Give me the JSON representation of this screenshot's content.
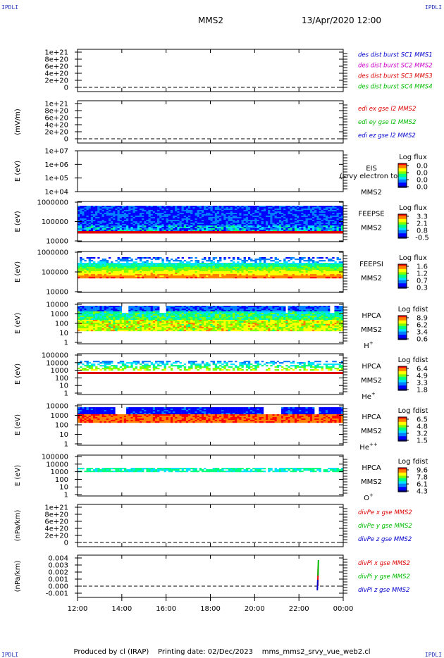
{
  "header": {
    "corner_tl": "IPDLI",
    "corner_tr": "IPDLI",
    "corner_bl": "IPDLI",
    "corner_br": "IPDLI",
    "spacecraft": "MMS2",
    "datetime": "13/Apr/2020 12:00"
  },
  "footer": {
    "produced": "Produced by cl (IRAP)",
    "printing": "Printing date: 02/Dec/2023",
    "file": "mms_mms2_srvy_vue_web2.cl"
  },
  "colors": {
    "red": "#dd0000",
    "green": "#00bb00",
    "blue": "#0000cc",
    "magenta": "#cc00cc",
    "spectrogram_palette": [
      "#000080",
      "#0000ff",
      "#0080ff",
      "#00e0ff",
      "#00ff80",
      "#80ff00",
      "#ffff00",
      "#ff8000",
      "#ff0000"
    ]
  },
  "time_axis": {
    "tick_labels": [
      "12:00",
      "14:00",
      "16:00",
      "18:00",
      "20:00",
      "22:00",
      "00:00"
    ],
    "hours": [
      12,
      14,
      16,
      18,
      20,
      22,
      24
    ]
  },
  "chart_data": [
    {
      "type": "line",
      "id": "des-dist",
      "ylabel": "",
      "ylim": [
        0,
        1e+21
      ],
      "tick_labels": [
        "1e+21",
        "8e+20",
        "6e+20",
        "4e+20",
        "2e+20",
        "0"
      ],
      "series": [
        {
          "name": "des dist burst SC1 MMS1",
          "color": "#0000cc",
          "values": []
        },
        {
          "name": "des dist burst SC2 MMS2",
          "color": "#cc00cc",
          "values": []
        },
        {
          "name": "des dist burst SC3 MMS3",
          "color": "#dd0000",
          "values": []
        },
        {
          "name": "des dist burst SC4 MMS4",
          "color": "#00bb00",
          "values": []
        }
      ]
    },
    {
      "type": "line",
      "id": "edi-e",
      "ylabel": "(mV/m)",
      "ylim": [
        0,
        1e+21
      ],
      "tick_labels": [
        "1e+21",
        "8e+20",
        "6e+20",
        "4e+20",
        "2e+20",
        "0"
      ],
      "series": [
        {
          "name": "edi ex gse l2 MMS2",
          "color": "#dd0000",
          "values": []
        },
        {
          "name": "edi ey gse l2 MMS2",
          "color": "#00bb00",
          "values": []
        },
        {
          "name": "edi ez gse l2 MMS2",
          "color": "#0000cc",
          "values": []
        }
      ]
    },
    {
      "type": "heatmap",
      "id": "eis",
      "ylabel": "E (eV)",
      "ylim": [
        10000,
        10000000
      ],
      "log_scale": true,
      "tick_labels": [
        "1e+07",
        "1e+06",
        "1e+05",
        "1e+04"
      ],
      "instrument": "EIS",
      "subtitle": "(srvy electron to",
      "sc": "MMS2",
      "colorbar": {
        "title": "Log flux",
        "ticks": [
          "0.0",
          "0.0",
          "0.0",
          "0.0"
        ]
      },
      "values": []
    },
    {
      "type": "heatmap",
      "id": "feeps-e",
      "ylabel": "E (eV)",
      "ylim": [
        10000,
        1000000
      ],
      "log_scale": true,
      "tick_labels": [
        "1000000",
        "100000",
        "10000"
      ],
      "instrument": "FEEPSE",
      "sc": "MMS2",
      "colorbar": {
        "title": "Log flux",
        "ticks": [
          "3.3",
          "2.1",
          "0.8",
          "-0.5"
        ]
      }
    },
    {
      "type": "heatmap",
      "id": "feeps-i",
      "ylabel": "E (eV)",
      "ylim": [
        10000,
        1000000
      ],
      "log_scale": true,
      "tick_labels": [
        "1000000",
        "100000",
        "10000"
      ],
      "instrument": "FEEPSI",
      "sc": "MMS2",
      "colorbar": {
        "title": "Log flux",
        "ticks": [
          "1.6",
          "1.2",
          "0.7",
          "0.3"
        ]
      }
    },
    {
      "type": "heatmap",
      "id": "hpca-h",
      "ylabel": "E (eV)",
      "ylim": [
        1,
        10000
      ],
      "log_scale": true,
      "tick_labels": [
        "10000",
        "1000",
        "100",
        "10",
        "1"
      ],
      "instrument": "HPCA",
      "sc": "MMS2",
      "species": "H",
      "species_sup": "+",
      "colorbar": {
        "title": "Log fdist",
        "ticks": [
          "8.9",
          "6.2",
          "3.4",
          "0.6"
        ]
      }
    },
    {
      "type": "heatmap",
      "id": "hpca-he",
      "ylabel": "E (eV)",
      "ylim": [
        1,
        100000
      ],
      "log_scale": true,
      "tick_labels": [
        "100000",
        "10000",
        "1000",
        "100",
        "10",
        "1"
      ],
      "instrument": "HPCA",
      "sc": "MMS2",
      "species": "He",
      "species_sup": "+",
      "colorbar": {
        "title": "Log fdist",
        "ticks": [
          "6.4",
          "4.9",
          "3.3",
          "1.8"
        ]
      }
    },
    {
      "type": "heatmap",
      "id": "hpca-he2",
      "ylabel": "E (eV)",
      "ylim": [
        1,
        10000
      ],
      "log_scale": true,
      "tick_labels": [
        "10000",
        "1000",
        "100",
        "10",
        "1"
      ],
      "instrument": "HPCA",
      "sc": "MMS2",
      "species": "He",
      "species_sup": "++",
      "colorbar": {
        "title": "Log fdist",
        "ticks": [
          "6.5",
          "4.8",
          "3.2",
          "1.5"
        ]
      }
    },
    {
      "type": "heatmap",
      "id": "hpca-o",
      "ylabel": "E (eV)",
      "ylim": [
        1,
        100000
      ],
      "log_scale": true,
      "tick_labels": [
        "100000",
        "10000",
        "1000",
        "100",
        "10",
        "1"
      ],
      "instrument": "HPCA",
      "sc": "MMS2",
      "species": "O",
      "species_sup": "+",
      "colorbar": {
        "title": "Log fdist",
        "ticks": [
          "9.6",
          "7.8",
          "6.1",
          "4.3"
        ]
      }
    },
    {
      "type": "line",
      "id": "divpe",
      "ylabel": "(nPa/km)",
      "ylim": [
        0,
        1e+21
      ],
      "tick_labels": [
        "1e+21",
        "8e+20",
        "6e+20",
        "4e+20",
        "2e+20",
        "0"
      ],
      "series": [
        {
          "name": "divPe x gse MMS2",
          "color": "#dd0000",
          "values": []
        },
        {
          "name": "divPe y gse MMS2",
          "color": "#00bb00",
          "values": []
        },
        {
          "name": "divPe z gse MMS2",
          "color": "#0000cc",
          "values": []
        }
      ]
    },
    {
      "type": "line",
      "id": "divpi",
      "ylabel": "(nPa/km)",
      "ylim": [
        -0.001,
        0.004
      ],
      "tick_labels": [
        "0.004",
        "0.003",
        "0.002",
        "0.001",
        "0.000",
        "-0.001"
      ],
      "series": [
        {
          "name": "divPi x gse MMS2",
          "color": "#dd0000",
          "x": [
            22.85,
            22.87
          ],
          "values": [
            0.0,
            0.0029
          ]
        },
        {
          "name": "divPi y gse MMS2",
          "color": "#00bb00",
          "x": [
            22.86,
            22.88
          ],
          "values": [
            0.0015,
            0.0037
          ]
        },
        {
          "name": "divPi z gse MMS2",
          "color": "#0000cc",
          "x": [
            22.83,
            22.85
          ],
          "values": [
            -0.0006,
            0.0009
          ]
        }
      ]
    }
  ]
}
